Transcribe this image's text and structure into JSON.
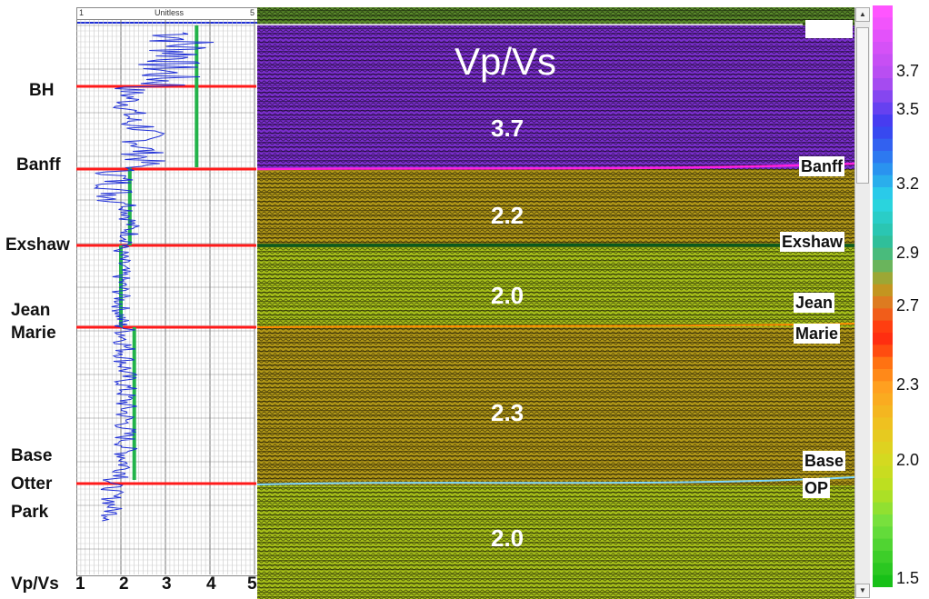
{
  "chart_data": {
    "type": "heatmap",
    "title": "Vp/Vs",
    "log_track": {
      "header_left": "1",
      "header_center": "Unitless",
      "header_right": "5",
      "axis_title": "Vp/Vs",
      "xlim": [
        1,
        5
      ],
      "x_ticks": [
        "1",
        "2",
        "3",
        "4",
        "5"
      ],
      "blocked_values": [
        {
          "top": "BH",
          "base": "Banff",
          "value": 3.7
        },
        {
          "top": "Banff",
          "base": "Exshaw",
          "value": 2.2
        },
        {
          "top": "Exshaw",
          "base": "Jean Marie",
          "value": 2.0
        },
        {
          "top": "Jean Marie",
          "base": "Base Otter Park",
          "value": 2.3
        }
      ]
    },
    "formation_tops_log": [
      "BH",
      "Banff",
      "Exshaw",
      "Jean Marie",
      "Base Otter Park"
    ],
    "horizons_seismic": [
      "Banff",
      "Exshaw",
      "Jean Marie",
      "Base OP"
    ],
    "interval_values": [
      "3.7",
      "2.2",
      "2.0",
      "2.3",
      "2.0"
    ],
    "colorbar": {
      "ticks": [
        "3.7",
        "3.5",
        "3.2",
        "2.9",
        "2.7",
        "2.3",
        "2.0",
        "1.5"
      ],
      "range": [
        1.5,
        4.0
      ]
    }
  },
  "log_labels": {
    "bh": "BH",
    "banff": "Banff",
    "exshaw": "Exshaw",
    "jean_marie_1": "Jean",
    "jean_marie_2": "Marie",
    "bop_1": "Base",
    "bop_2": "Otter",
    "bop_3": "Park"
  },
  "seismic_labels": {
    "banff": "Banff",
    "exshaw": "Exshaw",
    "jean_marie_1": "Jean",
    "jean_marie_2": "Marie",
    "bop_1": "Base",
    "bop_2": "OP"
  },
  "scrollbar": {
    "up": "▲",
    "down": "▼"
  },
  "colors": {
    "purple": "#7c2fd0",
    "olive": "#b49a18",
    "lime": "#a9c21a",
    "tops": "#ff1a1a",
    "blocked": "#22b34a",
    "log": "#1f2fd6"
  }
}
